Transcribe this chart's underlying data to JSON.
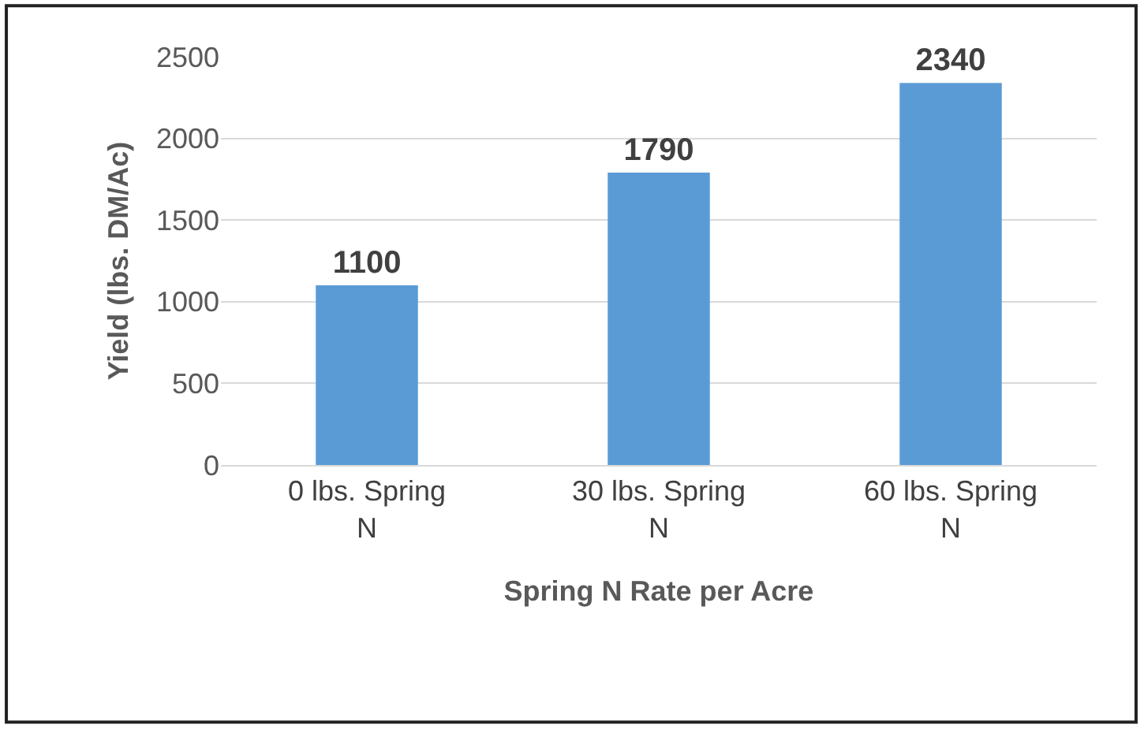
{
  "chart_data": {
    "type": "bar",
    "xlabel": "Spring N Rate per Acre",
    "ylabel": "Yield (lbs. DM/Ac)",
    "categories": [
      "0 lbs. Spring N",
      "30 lbs. Spring N",
      "60 lbs. Spring N"
    ],
    "values": [
      1100,
      1790,
      2340
    ],
    "color": "#5b9bd5",
    "data_labels": true,
    "ylim": [
      0,
      2500
    ],
    "yticks": [
      0,
      500,
      1000,
      1500,
      2000,
      2500
    ],
    "grid": "y"
  }
}
